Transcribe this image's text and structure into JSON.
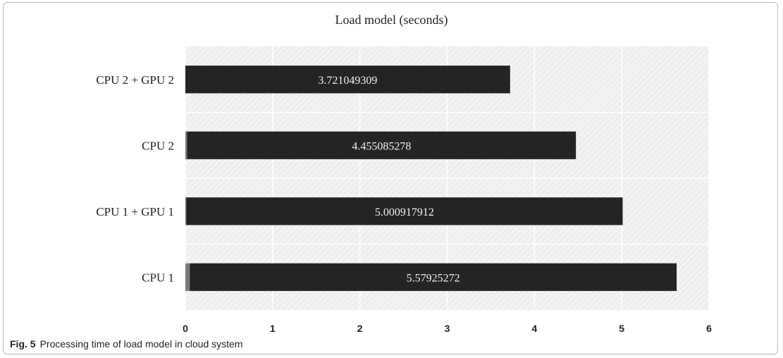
{
  "chart_data": {
    "type": "bar",
    "orientation": "horizontal",
    "title": "Load model  (seconds)",
    "categories": [
      "CPU 2 + GPU 2",
      "CPU 2",
      "CPU 1 + GPU 1",
      "CPU 1"
    ],
    "series": [
      {
        "values": [
          0,
          0.02,
          0.01,
          0.05
        ],
        "color": "#7a7a7a"
      },
      {
        "values": [
          3.721049309,
          4.455085278,
          5.000917912,
          5.57925272
        ],
        "color": "#242424"
      }
    ],
    "data_labels": [
      "3.721049309",
      "4.455085278",
      "5.000917912",
      "5.57925272"
    ],
    "xlim": [
      0,
      6
    ],
    "x_ticks": [
      "0",
      "1",
      "2",
      "3",
      "4",
      "5",
      "6"
    ],
    "xlabel": "",
    "ylabel": "",
    "grid": true,
    "legend": "none",
    "plot_background": "diagonal-hatch"
  },
  "caption": {
    "figure_label": "Fig. 5",
    "text": "Processing time of load model in cloud system"
  }
}
